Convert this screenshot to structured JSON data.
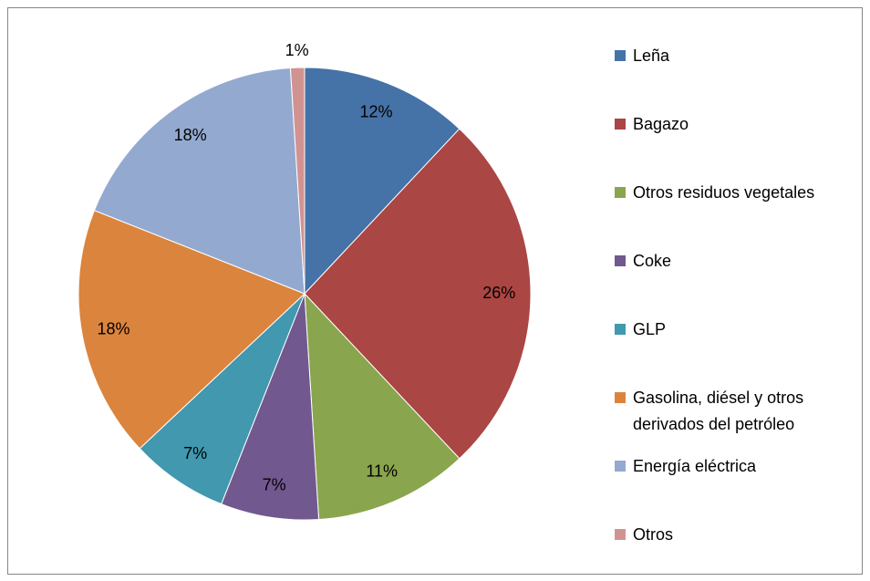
{
  "chart_data": {
    "type": "pie",
    "categories": [
      "Leña",
      "Bagazo",
      "Otros residuos vegetales",
      "Coke",
      "GLP",
      "Gasolina, diésel y otros derivados del petróleo",
      "Energía eléctrica",
      "Otros"
    ],
    "values": [
      12,
      26,
      11,
      7,
      7,
      18,
      18,
      1
    ],
    "value_labels": [
      "12%",
      "26%",
      "11%",
      "7%",
      "7%",
      "18%",
      "18%",
      "1%"
    ],
    "colors": [
      "#4572a7",
      "#aa4643",
      "#89a54e",
      "#71588f",
      "#4198af",
      "#db843d",
      "#93a9cf",
      "#d19392"
    ],
    "legend": "right"
  }
}
